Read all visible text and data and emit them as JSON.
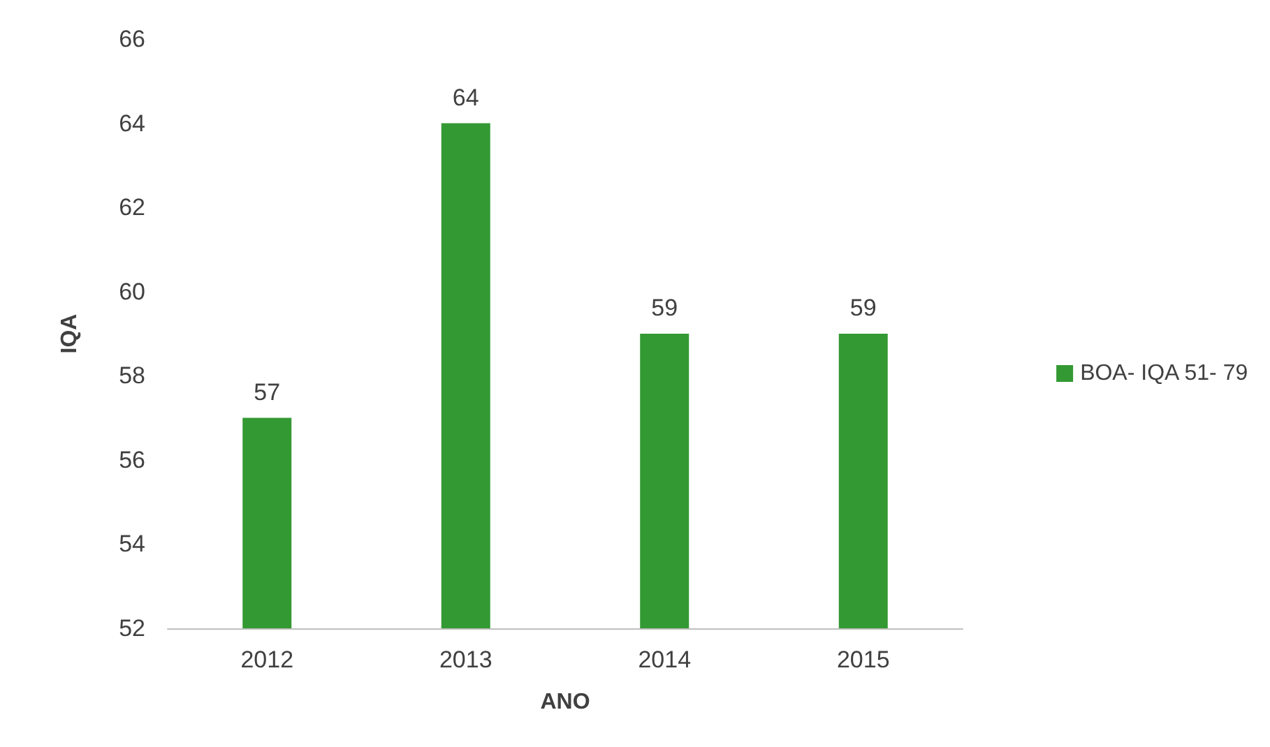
{
  "chart_data": {
    "type": "bar",
    "xlabel": "ANO",
    "ylabel": "IQA",
    "categories": [
      "2012",
      "2013",
      "2014",
      "2015"
    ],
    "series": [
      {
        "name": "BOA- IQA 51- 79",
        "color": "#339933",
        "values": [
          57,
          64,
          59,
          59
        ]
      }
    ],
    "ylim": [
      52,
      66
    ],
    "yticks": [
      52,
      54,
      56,
      58,
      60,
      62,
      64,
      66
    ],
    "grid": false,
    "legend": "right",
    "data_labels": true
  }
}
